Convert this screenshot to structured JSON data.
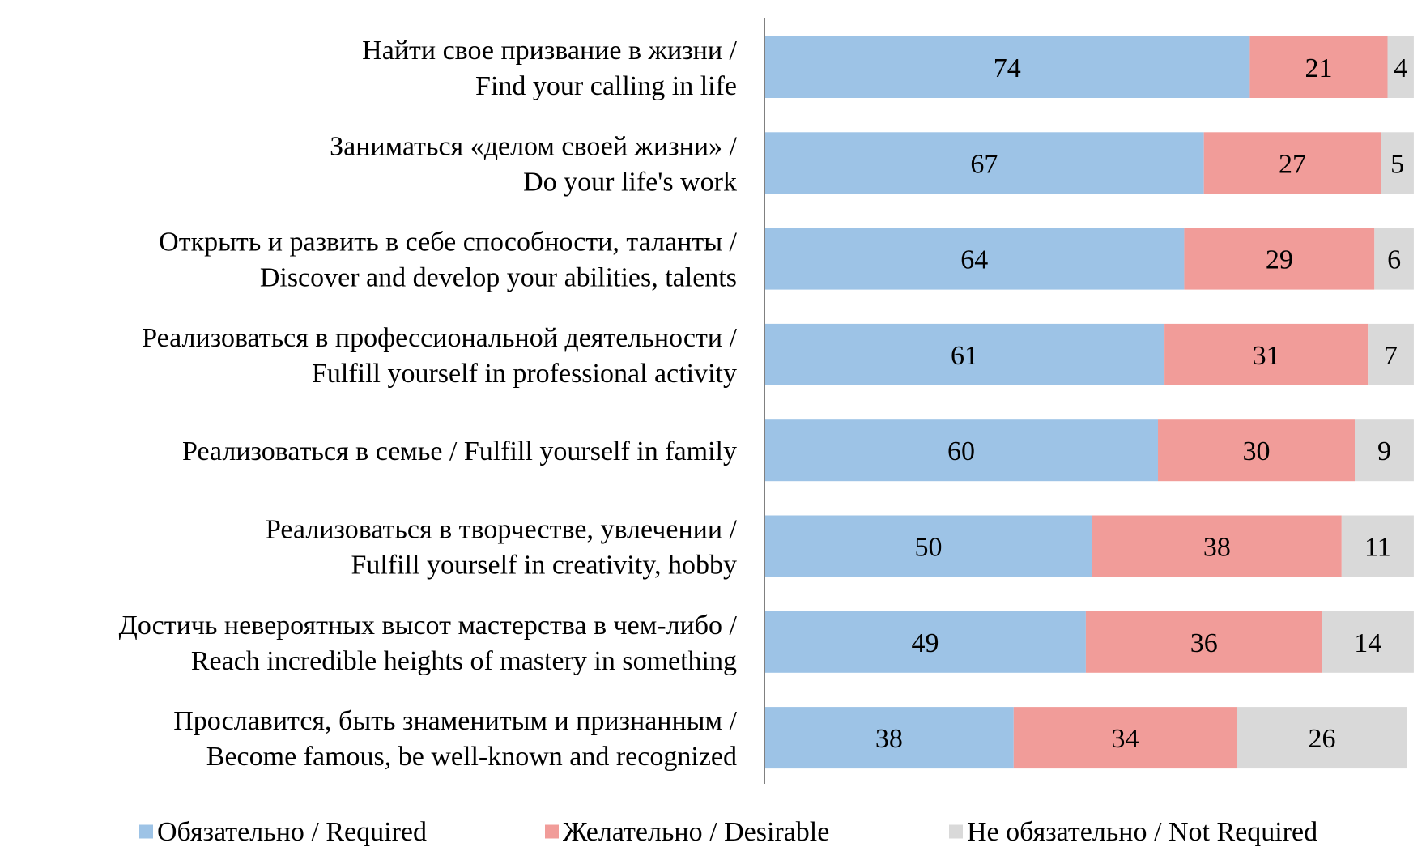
{
  "chart_data": {
    "type": "bar",
    "orientation": "horizontal",
    "stacked": true,
    "title": "",
    "xlabel": "",
    "ylabel": "",
    "xlim": [
      0,
      100
    ],
    "grid": false,
    "legend_position": "bottom",
    "categories": [
      [
        "Найти свое призвание в жизни /",
        "Find your calling in life"
      ],
      [
        "Заниматься «делом своей жизни» /",
        "Do your life's work"
      ],
      [
        "Открыть и развить в себе способности, таланты /",
        "Discover and develop your abilities, talents"
      ],
      [
        "Реализоваться в профессиональной деятельности /",
        "Fulfill yourself in professional activity"
      ],
      [
        "Реализоваться в семье / Fulfill yourself in family"
      ],
      [
        "Реализоваться в творчестве, увлечении /",
        "Fulfill yourself in creativity, hobby"
      ],
      [
        "Достичь невероятных высот мастерства в чем-либо /",
        "Reach incredible heights of mastery in something"
      ],
      [
        "Прославится, быть знаменитым и признанным /",
        "Become famous, be well-known and recognized"
      ]
    ],
    "series": [
      {
        "name": "Обязательно / Required",
        "color": "#9dc3e6",
        "values": [
          74,
          67,
          64,
          61,
          60,
          50,
          49,
          38
        ]
      },
      {
        "name": "Желательно / Desirable",
        "color": "#f19c99",
        "values": [
          21,
          27,
          29,
          31,
          30,
          38,
          36,
          34
        ]
      },
      {
        "name": "Не обязательно / Not Required",
        "color": "#d9d9d9",
        "values": [
          4,
          5,
          6,
          7,
          9,
          11,
          14,
          26
        ]
      }
    ],
    "axis_color": "#808080"
  }
}
